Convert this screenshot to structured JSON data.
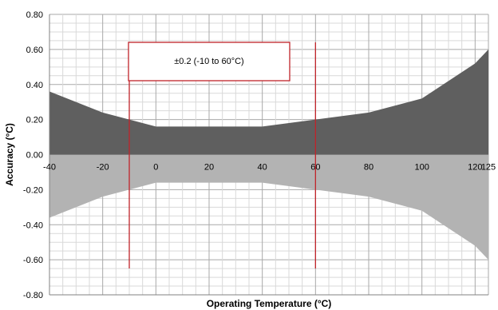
{
  "chart_data": {
    "type": "area",
    "title": "",
    "xlabel": "Operating Temperature (°C)",
    "ylabel": "Accuracy (°C)",
    "xlim": [
      -40,
      125
    ],
    "ylim": [
      -0.8,
      0.8
    ],
    "x_ticks": [
      -40,
      -20,
      0,
      20,
      40,
      60,
      80,
      100,
      120,
      125
    ],
    "x_tick_labels": [
      "-40",
      "-20",
      "0",
      "20",
      "40",
      "60",
      "80",
      "100",
      "120",
      "125"
    ],
    "y_ticks": [
      0.8,
      0.6,
      0.4,
      0.2,
      0.0,
      -0.2,
      -0.4,
      -0.6,
      -0.8
    ],
    "y_tick_labels": [
      "0.80",
      "0.60",
      "0.40",
      "0.20",
      "0.00",
      "-0.20",
      "-0.40",
      "-0.60",
      "-0.80"
    ],
    "grid": true,
    "x": [
      -40,
      -20,
      -10,
      0,
      20,
      40,
      60,
      80,
      100,
      120,
      125
    ],
    "series": [
      {
        "values": [
          0.36,
          0.24,
          0.2,
          0.16,
          0.16,
          0.16,
          0.2,
          0.24,
          0.32,
          0.52,
          0.6
        ],
        "color": "#5f5f5f"
      },
      {
        "values": [
          -0.36,
          -0.24,
          -0.2,
          -0.16,
          -0.16,
          -0.16,
          -0.2,
          -0.24,
          -0.32,
          -0.52,
          -0.6
        ],
        "color": "#b3b3b3"
      }
    ],
    "annotation": {
      "text": "±0.2 (-10 to 60°C)",
      "range": [
        -10,
        60
      ],
      "color": "#c0242a"
    }
  }
}
